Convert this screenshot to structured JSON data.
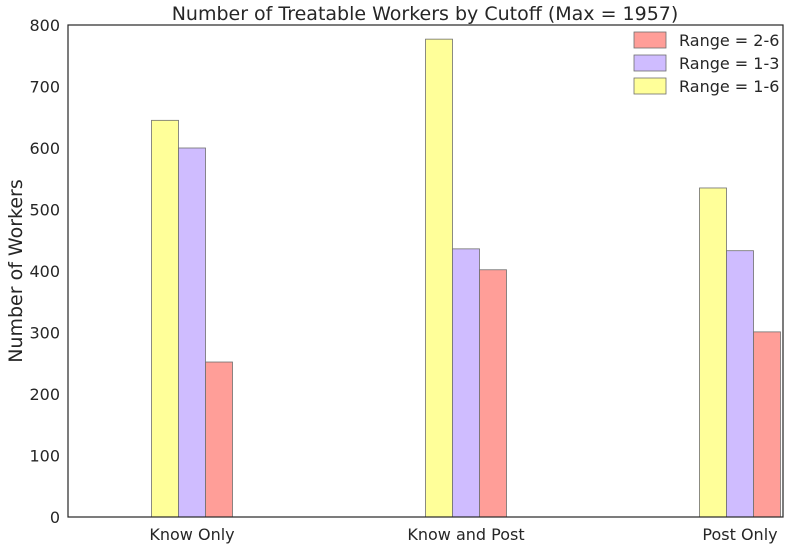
{
  "chart_data": {
    "type": "bar",
    "title": "Number of Treatable Workers by Cutoff (Max = 1957)",
    "xlabel": "",
    "ylabel": "Number of Workers",
    "categories": [
      "Know Only",
      "Know and Post",
      "Post Only"
    ],
    "ylim": [
      0,
      800
    ],
    "yticks": [
      0,
      100,
      200,
      300,
      400,
      500,
      600,
      700,
      800
    ],
    "grid": false,
    "legend_position": "top-right",
    "series": [
      {
        "name": "Range = 1-6",
        "color": "#ffff99",
        "values": [
          645,
          777,
          535
        ]
      },
      {
        "name": "Range = 1-3",
        "color": "#cfbcff",
        "values": [
          600,
          436,
          433
        ]
      },
      {
        "name": "Range = 2-6",
        "color": "#ff9e98",
        "values": [
          252,
          402,
          301
        ]
      }
    ],
    "legend_order": [
      "Range = 2-6",
      "Range = 1-3",
      "Range = 1-6"
    ]
  }
}
